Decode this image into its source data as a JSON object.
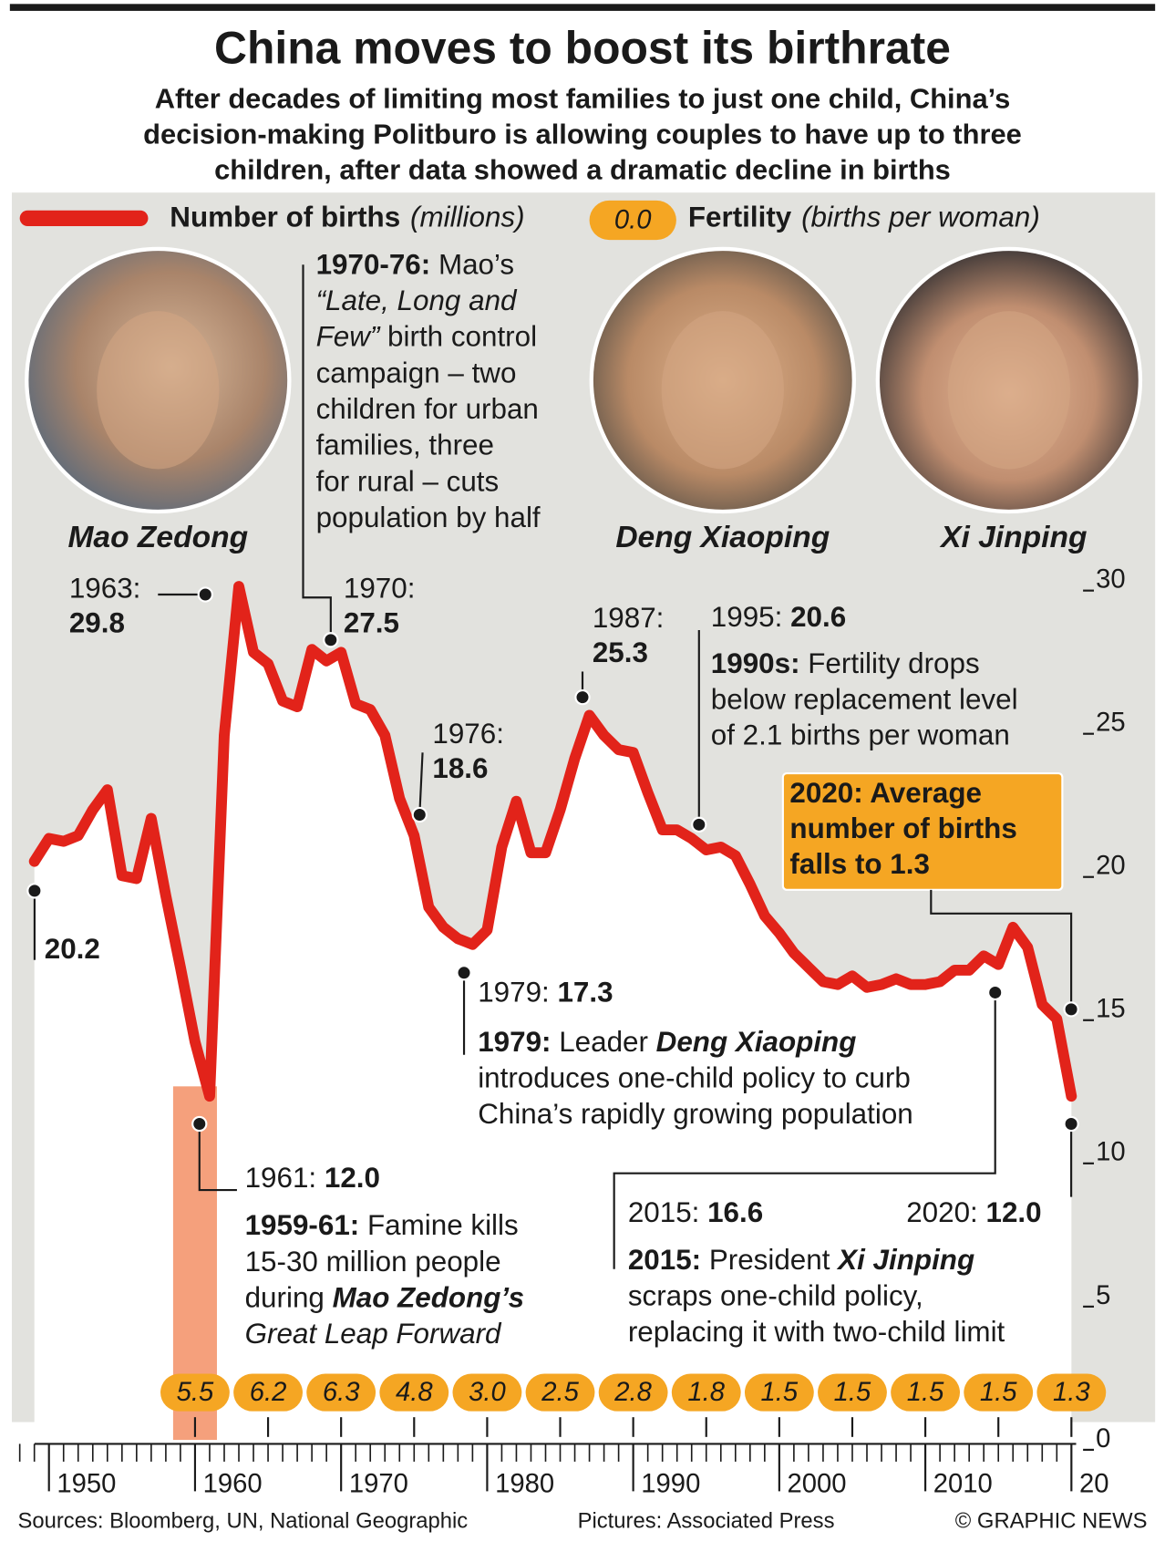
{
  "chart_data": {
    "type": "line",
    "title": "China moves to boost its birthrate",
    "subtitle": [
      "After decades of limiting most families to just one child, China’s",
      "decision-making Politburo is allowing couples to have up to three",
      "children, after data showed a dramatic decline in births"
    ],
    "x": [
      1949,
      1950,
      1951,
      1952,
      1953,
      1954,
      1955,
      1956,
      1957,
      1958,
      1959,
      1960,
      1961,
      1962,
      1963,
      1964,
      1965,
      1966,
      1967,
      1968,
      1969,
      1970,
      1971,
      1972,
      1973,
      1974,
      1975,
      1976,
      1977,
      1978,
      1979,
      1980,
      1981,
      1982,
      1983,
      1984,
      1985,
      1986,
      1987,
      1988,
      1989,
      1990,
      1991,
      1992,
      1993,
      1994,
      1995,
      1996,
      1997,
      1998,
      1999,
      2000,
      2001,
      2002,
      2003,
      2004,
      2005,
      2006,
      2007,
      2008,
      2009,
      2010,
      2011,
      2012,
      2013,
      2014,
      2015,
      2016,
      2017,
      2018,
      2019,
      2020
    ],
    "series": [
      {
        "name": "Number of births",
        "unit": "(millions)",
        "color": "#e2231a",
        "values": [
          20.2,
          21.0,
          20.9,
          21.1,
          22.0,
          22.7,
          19.7,
          19.6,
          21.7,
          19.0,
          16.5,
          13.9,
          12.0,
          24.6,
          29.8,
          27.5,
          27.1,
          25.8,
          25.6,
          27.6,
          27.2,
          27.5,
          25.7,
          25.5,
          24.6,
          22.4,
          21.1,
          18.6,
          17.9,
          17.5,
          17.3,
          17.8,
          20.7,
          22.3,
          20.5,
          20.5,
          22.0,
          23.8,
          25.3,
          24.6,
          24.1,
          24.0,
          22.6,
          21.3,
          21.3,
          21.0,
          20.6,
          20.7,
          20.4,
          19.4,
          18.3,
          17.7,
          17.0,
          16.5,
          16.0,
          15.9,
          16.2,
          15.8,
          15.9,
          16.1,
          15.9,
          15.9,
          16.0,
          16.4,
          16.4,
          16.9,
          16.6,
          17.9,
          17.2,
          15.2,
          14.7,
          12.0
        ]
      }
    ],
    "fertility": {
      "name": "Fertility",
      "unit": "(births per woman)",
      "legend_sample": "0.0",
      "color": "#f5a623",
      "x": [
        1960,
        1965,
        1970,
        1975,
        1980,
        1985,
        1990,
        1995,
        2000,
        2005,
        2010,
        2015,
        2020
      ],
      "values": [
        5.5,
        6.2,
        6.3,
        4.8,
        3.0,
        2.5,
        2.8,
        1.8,
        1.5,
        1.5,
        1.5,
        1.5,
        1.3
      ],
      "value_labels": [
        "5.5",
        "6.2",
        "6.3",
        "4.8",
        "3.0",
        "2.5",
        "2.8",
        "1.8",
        "1.5",
        "1.5",
        "1.5",
        "1.5",
        "1.3"
      ]
    },
    "shaded_period": {
      "x": [
        1959,
        1961
      ],
      "color": "#f5a07c"
    },
    "xlim": [
      1948,
      2021
    ],
    "xticks": [
      1950,
      1960,
      1970,
      1980,
      1990,
      2000,
      2010,
      {
        "value": 2020,
        "label": "20"
      }
    ],
    "ylim": [
      0,
      30
    ],
    "yticks": [
      0,
      5,
      10,
      15,
      20,
      25,
      30
    ]
  },
  "portraits": [
    {
      "name": "Mao Zedong"
    },
    {
      "name": "Deng Xiaoping"
    },
    {
      "name": "Xi Jinping"
    }
  ],
  "annotations": [
    {
      "lines": [
        [
          {
            "text": "1963:"
          }
        ],
        [
          {
            "text": "29.8",
            "style": "bold"
          }
        ]
      ]
    },
    {
      "lines": [
        [
          {
            "text": "1970:"
          }
        ],
        [
          {
            "text": "27.5",
            "style": "bold"
          }
        ]
      ]
    },
    {
      "lines": [
        [
          {
            "text": "1970-76:",
            "style": "bold"
          },
          {
            "text": " Mao’s"
          }
        ],
        [
          {
            "text": "“Late, Long and",
            "style": "italic"
          }
        ],
        [
          {
            "text": "Few”",
            "style": "italic"
          },
          {
            "text": " birth control"
          }
        ],
        [
          {
            "text": "campaign – two"
          }
        ],
        [
          {
            "text": "children for urban"
          }
        ],
        [
          {
            "text": "families, three"
          }
        ],
        [
          {
            "text": "for rural – cuts"
          }
        ],
        [
          {
            "text": "population by half"
          }
        ]
      ]
    },
    {
      "lines": [
        [
          {
            "text": "1976:"
          }
        ],
        [
          {
            "text": "18.6",
            "style": "bold"
          }
        ]
      ]
    },
    {
      "lines": [
        [
          {
            "text": "1979: "
          },
          {
            "text": "17.3",
            "style": "bold"
          }
        ]
      ]
    },
    {
      "lines": [
        [
          {
            "text": "1979:",
            "style": "bold"
          },
          {
            "text": " Leader "
          },
          {
            "text": "Deng Xiaoping",
            "style": "bold-italic"
          }
        ],
        [
          {
            "text": "introduces one-child policy to curb"
          }
        ],
        [
          {
            "text": "China’s rapidly growing population"
          }
        ]
      ]
    },
    {
      "lines": [
        [
          {
            "text": "1987:"
          }
        ],
        [
          {
            "text": "25.3",
            "style": "bold"
          }
        ]
      ]
    },
    {
      "lines": [
        [
          {
            "text": "1995: "
          },
          {
            "text": "20.6",
            "style": "bold"
          }
        ]
      ]
    },
    {
      "lines": [
        [
          {
            "text": "1990s:",
            "style": "bold"
          },
          {
            "text": " Fertility drops"
          }
        ],
        [
          {
            "text": "below replacement level"
          }
        ],
        [
          {
            "text": "of 2.1 births per woman"
          }
        ]
      ]
    },
    {
      "lines": [
        [
          {
            "text": "2020: Average",
            "style": "bold"
          }
        ],
        [
          {
            "text": "number of births",
            "style": "bold"
          }
        ],
        [
          {
            "text": "falls to 1.3",
            "style": "bold"
          }
        ]
      ]
    },
    {
      "lines": [
        [
          {
            "text": "1961: "
          },
          {
            "text": "12.0",
            "style": "bold"
          }
        ]
      ]
    },
    {
      "lines": [
        [
          {
            "text": "1959-61:",
            "style": "bold"
          },
          {
            "text": " Famine kills"
          }
        ],
        [
          {
            "text": "15-30 million people"
          }
        ],
        [
          {
            "text": "during "
          },
          {
            "text": "Mao Zedong’s",
            "style": "bold-italic"
          }
        ],
        [
          {
            "text": "Great Leap Forward",
            "style": "italic"
          }
        ]
      ]
    },
    {
      "lines": [
        [
          {
            "text": "2015: "
          },
          {
            "text": "16.6",
            "style": "bold"
          }
        ]
      ]
    },
    {
      "lines": [
        [
          {
            "text": "2015:",
            "style": "bold"
          },
          {
            "text": " President "
          },
          {
            "text": "Xi Jinping",
            "style": "bold-italic"
          }
        ],
        [
          {
            "text": "scraps one-child policy,"
          }
        ],
        [
          {
            "text": "replacing it with two-child limit"
          }
        ]
      ]
    },
    {
      "lines": [
        [
          {
            "text": "2020: "
          },
          {
            "text": "12.0",
            "style": "bold"
          }
        ]
      ]
    },
    {
      "lines": [
        [
          {
            "text": "20.2",
            "style": "bold"
          }
        ]
      ]
    }
  ],
  "sources": [
    "Sources: Bloomberg, UN, National Geographic",
    "Pictures: Associated Press",
    "© GRAPHIC NEWS"
  ]
}
